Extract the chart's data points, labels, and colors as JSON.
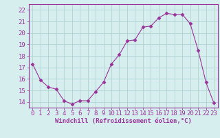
{
  "x": [
    0,
    1,
    2,
    3,
    4,
    5,
    6,
    7,
    8,
    9,
    10,
    11,
    12,
    13,
    14,
    15,
    16,
    17,
    18,
    19,
    20,
    21,
    22,
    23
  ],
  "y": [
    17.3,
    15.9,
    15.3,
    15.1,
    14.1,
    13.8,
    14.1,
    14.1,
    14.9,
    15.7,
    17.3,
    18.1,
    19.3,
    19.4,
    20.5,
    20.6,
    21.3,
    21.7,
    21.6,
    21.6,
    20.8,
    18.5,
    15.7,
    13.9
  ],
  "line_color": "#993399",
  "marker": "D",
  "marker_size": 2.5,
  "bg_color": "#d6eeee",
  "grid_color": "#aacccc",
  "xlabel": "Windchill (Refroidissement éolien,°C)",
  "xlabel_color": "#993399",
  "tick_color": "#993399",
  "ylim": [
    13.5,
    22.5
  ],
  "xlim": [
    -0.5,
    23.5
  ],
  "yticks": [
    14,
    15,
    16,
    17,
    18,
    19,
    20,
    21,
    22
  ],
  "xticks": [
    0,
    1,
    2,
    3,
    4,
    5,
    6,
    7,
    8,
    9,
    10,
    11,
    12,
    13,
    14,
    15,
    16,
    17,
    18,
    19,
    20,
    21,
    22,
    23
  ],
  "tick_fontsize": 6.5,
  "xlabel_fontsize": 6.5
}
